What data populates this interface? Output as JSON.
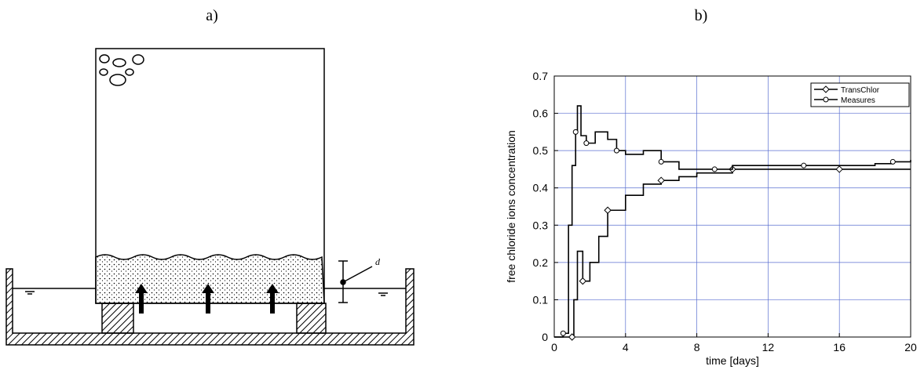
{
  "panels": {
    "a": {
      "label": "a)",
      "dimension_label": "d"
    },
    "b": {
      "label": "b)"
    }
  },
  "chart_data": {
    "type": "line",
    "xlabel": "time [days]",
    "ylabel": "free chloride ions concentration",
    "xlim": [
      0,
      20
    ],
    "ylim": [
      0,
      0.7
    ],
    "xticks": [
      0,
      4,
      8,
      12,
      16,
      20
    ],
    "yticks": [
      0,
      0.1,
      0.2,
      0.3,
      0.4,
      0.5,
      0.6,
      0.7
    ],
    "grid": true,
    "legend": "upper right",
    "series": [
      {
        "name": "TransChlor",
        "color": "#000000",
        "marker": "diamond",
        "x": [
          0,
          1,
          1.1,
          1.3,
          1.6,
          2,
          2.5,
          3,
          4,
          5,
          6,
          7,
          8,
          10,
          12,
          14,
          16,
          18,
          20
        ],
        "values": [
          0,
          0,
          0.1,
          0.23,
          0.15,
          0.2,
          0.27,
          0.34,
          0.38,
          0.41,
          0.42,
          0.43,
          0.44,
          0.45,
          0.45,
          0.45,
          0.45,
          0.45,
          0.45
        ]
      },
      {
        "name": "Measures",
        "color": "#000000",
        "marker": "circle",
        "x": [
          0,
          0.5,
          0.8,
          1,
          1.2,
          1.3,
          1.5,
          1.8,
          2.3,
          3,
          3.5,
          4,
          5,
          6,
          7,
          8,
          9,
          10,
          12,
          14,
          16,
          18,
          19,
          20
        ],
        "values": [
          0,
          0.01,
          0.3,
          0.46,
          0.55,
          0.62,
          0.54,
          0.52,
          0.55,
          0.53,
          0.5,
          0.49,
          0.5,
          0.47,
          0.45,
          0.45,
          0.45,
          0.46,
          0.46,
          0.46,
          0.46,
          0.465,
          0.47,
          0.475
        ]
      }
    ]
  }
}
